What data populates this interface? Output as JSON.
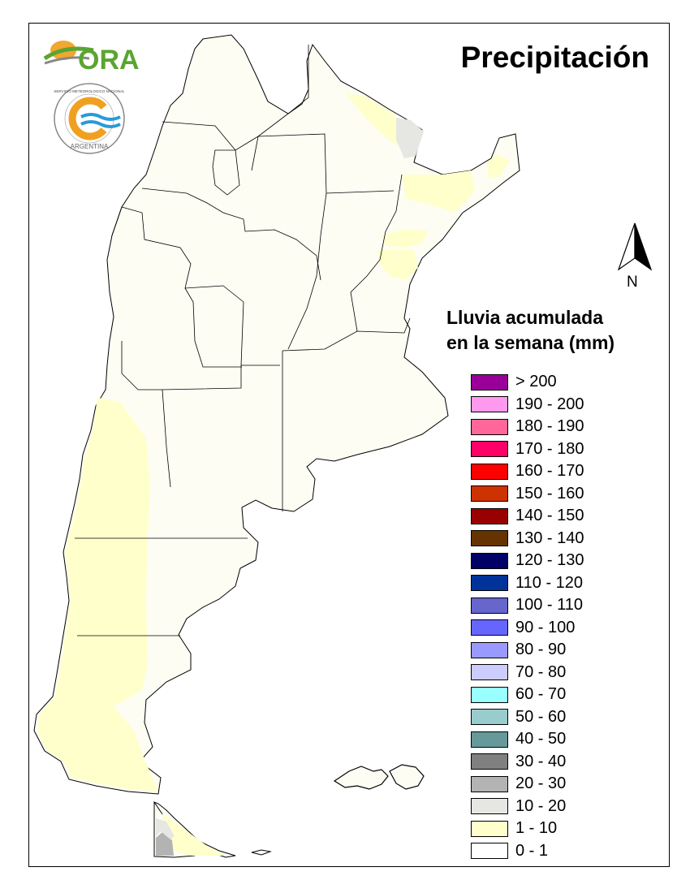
{
  "title": "Precipitación",
  "logo_ora": "ORA",
  "logo_smn_ring_text": "SERVICIO METEOROLOGICO NACIONAL",
  "logo_smn_country": "ARGENTINA",
  "north_label": "N",
  "legend": {
    "title_line1": "Lluvia acumulada",
    "title_line2": "en la semana (mm)",
    "items": [
      {
        "label": "> 200",
        "color": "#990099"
      },
      {
        "label": "190 - 200",
        "color": "#ff99ee"
      },
      {
        "label": "180 - 190",
        "color": "#ff6699"
      },
      {
        "label": "170 - 180",
        "color": "#ff0066"
      },
      {
        "label": "160 - 170",
        "color": "#ff0000"
      },
      {
        "label": "150 - 160",
        "color": "#cc3300"
      },
      {
        "label": "140 - 150",
        "color": "#990000"
      },
      {
        "label": "130 - 140",
        "color": "#663300"
      },
      {
        "label": "120 - 130",
        "color": "#000066"
      },
      {
        "label": "110 - 120",
        "color": "#003399"
      },
      {
        "label": "100 - 110",
        "color": "#6666cc"
      },
      {
        "label": "90 - 100",
        "color": "#6666ff"
      },
      {
        "label": "80 - 90",
        "color": "#9999ff"
      },
      {
        "label": "70 - 80",
        "color": "#ccccff"
      },
      {
        "label": "60 - 70",
        "color": "#99ffff"
      },
      {
        "label": "50 - 60",
        "color": "#99cccc"
      },
      {
        "label": "40 - 50",
        "color": "#669999"
      },
      {
        "label": "30 - 40",
        "color": "#808080"
      },
      {
        "label": "20 - 30",
        "color": "#b3b3b3"
      },
      {
        "label": "10 - 20",
        "color": "#e6e6e3"
      },
      {
        "label": "1 - 10",
        "color": "#ffffcc"
      },
      {
        "label": "0 - 1",
        "color": "#ffffff"
      }
    ]
  }
}
